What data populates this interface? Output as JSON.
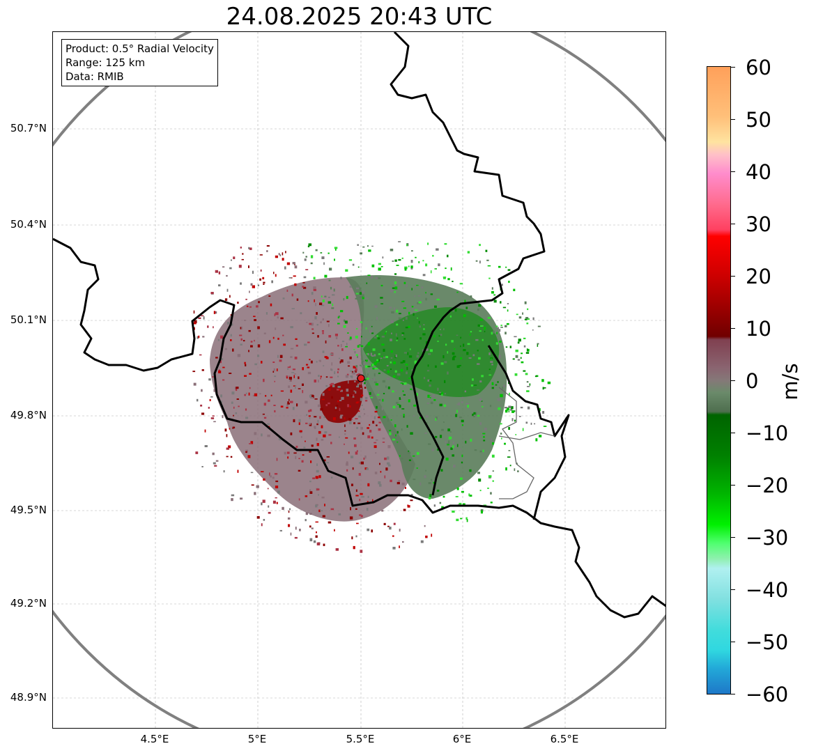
{
  "title": "24.08.2025 20:43 UTC",
  "info": {
    "product": "Product: 0.5° Radial Velocity",
    "range": "Range: 125 km",
    "source": "Data: RMIB"
  },
  "axes": {
    "lat_labels": [
      "50.7°N",
      "50.4°N",
      "50.1°N",
      "49.8°N",
      "49.5°N",
      "49.2°N",
      "48.9°N"
    ],
    "lon_labels": [
      "4.5°E",
      "5°E",
      "5.5°E",
      "6°E",
      "6.5°E"
    ]
  },
  "colorbar": {
    "unit": "m/s",
    "ticks": [
      "60",
      "50",
      "40",
      "30",
      "20",
      "10",
      "0",
      "−10",
      "−20",
      "−30",
      "−40",
      "−50",
      "−60"
    ]
  },
  "colors": {
    "range_ring": "#808080",
    "border": "#000000",
    "radar_site": "#e41a1c",
    "positive_velocity": "#8b0000",
    "negative_velocity": "#007a00",
    "near_zero_receding": "#8a6470",
    "near_zero_approaching": "#5d7d5d"
  },
  "radar_site": {
    "lat": 49.91,
    "lon": 5.505
  }
}
